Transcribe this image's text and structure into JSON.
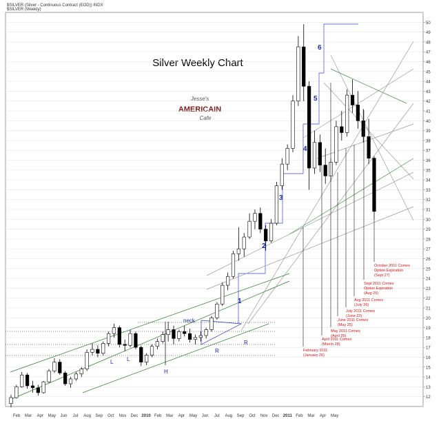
{
  "chart_data": {
    "type": "candlestick",
    "header": "$SILVER (Silver - Continuous Contract (EOD)) INDX",
    "subheader": "$SILVER (Weekly)",
    "title": "Silver Weekly Chart",
    "logo": [
      "Jesse's",
      "AMERICAIN",
      "Cafe"
    ],
    "categories": [
      "Feb",
      "Mar",
      "Apr",
      "May",
      "Jun",
      "Jul",
      "Aug",
      "Sep",
      "Oct",
      "Nov",
      "Dec",
      "2010",
      "Feb",
      "Mar",
      "Apr",
      "May",
      "Jun",
      "Jul",
      "Aug",
      "Sep",
      "Oct",
      "Nov",
      "Dec",
      "2011",
      "Feb",
      "Mar",
      "Apr",
      "May"
    ],
    "up_color": "#ffffff",
    "down_color": "#000000",
    "ylim": [
      11,
      51
    ],
    "yticks": [
      12,
      13,
      14,
      15,
      16,
      17,
      18,
      19,
      20,
      21,
      22,
      23,
      24,
      25,
      26,
      27,
      28,
      29,
      30,
      31,
      32,
      33,
      34,
      35,
      36,
      37,
      38,
      39,
      40,
      41,
      42,
      43,
      44,
      45,
      46,
      47,
      48,
      49,
      50
    ],
    "grid": true,
    "ohlc": [
      [
        11.3,
        12.2,
        10.9,
        11.9
      ],
      [
        11.9,
        13.2,
        11.8,
        13.0
      ],
      [
        13.0,
        14.5,
        12.9,
        14.2
      ],
      [
        14.2,
        14.4,
        12.8,
        13.1
      ],
      [
        13.1,
        13.6,
        12.4,
        12.9
      ],
      [
        12.9,
        13.2,
        12.1,
        12.4
      ],
      [
        12.4,
        13.6,
        12.3,
        13.5
      ],
      [
        13.5,
        14.8,
        13.4,
        14.6
      ],
      [
        14.6,
        15.9,
        14.4,
        15.5
      ],
      [
        15.5,
        15.8,
        14.2,
        14.4
      ],
      [
        14.4,
        14.6,
        13.1,
        13.3
      ],
      [
        13.3,
        14.0,
        12.9,
        13.8
      ],
      [
        13.8,
        14.5,
        13.6,
        14.3
      ],
      [
        14.3,
        15.0,
        14.0,
        14.8
      ],
      [
        14.8,
        16.8,
        14.6,
        16.5
      ],
      [
        16.5,
        17.4,
        16.2,
        16.8
      ],
      [
        16.8,
        17.2,
        16.0,
        16.4
      ],
      [
        16.4,
        17.6,
        16.2,
        17.4
      ],
      [
        17.4,
        18.6,
        17.1,
        18.4
      ],
      [
        18.4,
        19.4,
        18.0,
        19.0
      ],
      [
        19.0,
        19.2,
        17.0,
        17.3
      ],
      [
        17.3,
        17.8,
        16.6,
        17.2
      ],
      [
        17.2,
        18.8,
        17.0,
        18.4
      ],
      [
        18.4,
        18.6,
        16.8,
        17.0
      ],
      [
        17.0,
        17.2,
        15.1,
        15.5
      ],
      [
        15.5,
        16.4,
        15.2,
        16.2
      ],
      [
        16.2,
        17.3,
        16.0,
        17.1
      ],
      [
        17.1,
        17.9,
        16.8,
        17.6
      ],
      [
        17.6,
        18.6,
        17.4,
        18.3
      ],
      [
        18.3,
        19.6,
        17.6,
        18.8
      ],
      [
        18.8,
        19.2,
        17.3,
        17.9
      ],
      [
        17.9,
        18.8,
        17.6,
        18.6
      ],
      [
        18.6,
        19.2,
        18.1,
        18.4
      ],
      [
        18.4,
        18.9,
        17.5,
        17.8
      ],
      [
        17.8,
        18.3,
        17.3,
        18.0
      ],
      [
        18.0,
        18.6,
        17.6,
        18.2
      ],
      [
        18.2,
        19.0,
        17.9,
        18.8
      ],
      [
        18.8,
        20.2,
        18.6,
        20.0
      ],
      [
        20.0,
        21.6,
        19.8,
        21.4
      ],
      [
        21.4,
        23.6,
        21.2,
        23.3
      ],
      [
        23.3,
        24.6,
        22.8,
        24.2
      ],
      [
        24.2,
        26.8,
        24.0,
        26.5
      ],
      [
        26.5,
        29.2,
        25.8,
        27.0
      ],
      [
        27.0,
        28.6,
        26.2,
        28.2
      ],
      [
        28.2,
        30.6,
        28.0,
        29.8
      ],
      [
        29.8,
        31.0,
        29.0,
        30.6
      ],
      [
        30.6,
        31.2,
        28.6,
        29.0
      ],
      [
        29.0,
        29.4,
        26.8,
        27.8
      ],
      [
        27.8,
        30.0,
        27.6,
        29.6
      ],
      [
        29.6,
        33.8,
        29.4,
        33.4
      ],
      [
        33.4,
        36.2,
        33.0,
        35.6
      ],
      [
        35.6,
        37.6,
        35.0,
        37.2
      ],
      [
        37.2,
        42.6,
        36.8,
        42.0
      ],
      [
        42.0,
        48.6,
        41.5,
        47.5
      ],
      [
        47.5,
        49.8,
        42.0,
        43.5
      ],
      [
        43.5,
        44.0,
        33.0,
        35.2
      ],
      [
        35.2,
        39.0,
        34.6,
        37.8
      ],
      [
        37.8,
        38.6,
        34.8,
        35.5
      ],
      [
        35.5,
        37.2,
        33.6,
        34.4
      ],
      [
        34.4,
        36.2,
        33.8,
        35.8
      ],
      [
        35.8,
        40.0,
        35.5,
        39.4
      ],
      [
        39.4,
        41.0,
        38.0,
        38.8
      ],
      [
        38.8,
        43.2,
        38.4,
        42.6
      ],
      [
        42.6,
        44.2,
        40.8,
        41.6
      ],
      [
        41.6,
        43.0,
        39.2,
        40.0
      ],
      [
        40.0,
        41.2,
        37.8,
        38.4
      ],
      [
        38.4,
        40.2,
        35.6,
        36.2
      ],
      [
        36.2,
        36.4,
        30.0,
        30.8
      ]
    ],
    "waves": [
      "1",
      "2",
      "3",
      "4",
      "5",
      "6"
    ],
    "pattern_labels": [
      "L",
      "L",
      "H",
      "R",
      "R",
      "neck"
    ],
    "expirations": [
      [
        "February 2011",
        "(January 26)"
      ],
      [
        "April 2011 Comex",
        "(March 28)"
      ],
      [
        "May 2011 Comex",
        "(April 25)"
      ],
      [
        "June 2011 Comex",
        "(May 25)"
      ],
      [
        "July 2011 Comex",
        "(June 22)"
      ],
      [
        "Aug 2011 Comex",
        "(July 26)"
      ],
      [
        "Sept 2011 Comex",
        "Option Expiration",
        "(Aug 25)"
      ],
      [
        "October 2011 Comex",
        "Option Expiration",
        "(Sept 27)"
      ]
    ]
  }
}
